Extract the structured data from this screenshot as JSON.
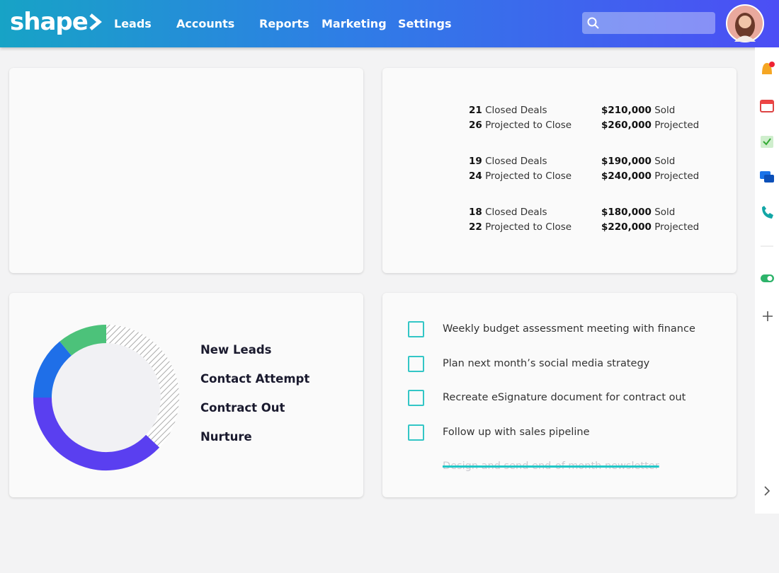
{
  "header": {
    "logo": "shape",
    "nav": [
      {
        "label": "Leads",
        "dropdown": true
      },
      {
        "label": "Accounts",
        "dropdown": true
      },
      {
        "label": "Reports",
        "dropdown": false
      },
      {
        "label": "Marketing",
        "dropdown": false
      },
      {
        "label": "Settings",
        "dropdown": false
      }
    ]
  },
  "sales": [
    {
      "closed": 21,
      "closed_label": "Closed Deals",
      "projected": 26,
      "projected_label": "Projected to Close",
      "sold": "$210,000",
      "sold_label": "Sold",
      "projected_amount": "$260,000",
      "projected_amount_label": "Projected"
    },
    {
      "closed": 19,
      "closed_label": "Closed Deals",
      "projected": 24,
      "projected_label": "Projected to Close",
      "sold": "$190,000",
      "sold_label": "Sold",
      "projected_amount": "$240,000",
      "projected_amount_label": "Projected"
    },
    {
      "closed": 18,
      "closed_label": "Closed Deals",
      "projected": 22,
      "projected_label": "Projected to Close",
      "sold": "$180,000",
      "sold_label": "Sold",
      "projected_amount": "$220,000",
      "projected_amount_label": "Projected"
    }
  ],
  "chart_data": {
    "type": "donut",
    "categories": [
      "New Leads",
      "Contact Attempt",
      "Contract Out",
      "Nurture"
    ],
    "values": [
      14,
      38,
      11,
      37
    ],
    "colors": [
      "#1f6fe8",
      "#5a3ff0",
      "#4cc27a",
      "#ffffff"
    ]
  },
  "tasks": [
    {
      "text": "Weekly budget assessment meeting with finance",
      "done": false
    },
    {
      "text": "Plan next month’s social media strategy",
      "done": false
    },
    {
      "text": "Recreate eSignature document for contract out",
      "done": false
    },
    {
      "text": "Follow up with sales pipeline",
      "done": false
    },
    {
      "text": "Design and send end-of-month newsletter",
      "done": true
    }
  ]
}
